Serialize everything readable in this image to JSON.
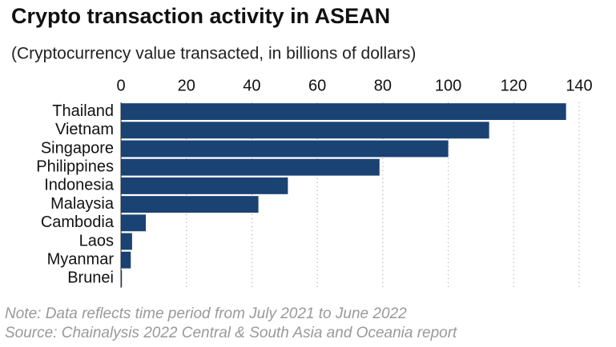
{
  "chart_data": {
    "type": "bar",
    "orientation": "horizontal",
    "title": "Crypto transaction activity in ASEAN",
    "subtitle": "(Cryptocurrency value transacted, in billions of dollars)",
    "categories": [
      "Thailand",
      "Vietnam",
      "Singapore",
      "Philippines",
      "Indonesia",
      "Malaysia",
      "Cambodia",
      "Laos",
      "Myanmar",
      "Brunei"
    ],
    "values": [
      136,
      112.5,
      100,
      79,
      51,
      42,
      7.6,
      3.4,
      3,
      0.3
    ],
    "color": "#1a4273",
    "xlim": [
      0,
      140
    ],
    "xticks": [
      0,
      20,
      40,
      60,
      80,
      100,
      120,
      140
    ],
    "grid": true,
    "notes": [
      "Note: Data reflects time period from July 2021 to June 2022",
      "Source: Chainalysis 2022 Central & South Asia and Oceania report"
    ]
  }
}
